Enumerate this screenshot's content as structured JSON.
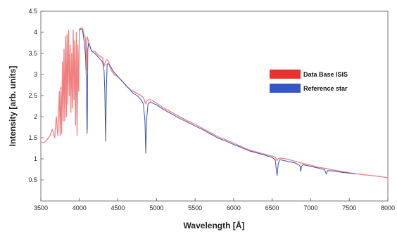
{
  "chart_data": {
    "type": "line",
    "xlabel": "Wavelength [Å]",
    "ylabel": "Intensity  [arb. units]",
    "xlim": [
      3500,
      8000
    ],
    "ylim": [
      0.0,
      4.5
    ],
    "x_ticks": [
      3500,
      4000,
      4500,
      5000,
      5500,
      6000,
      6500,
      7000,
      7500,
      8000
    ],
    "y_ticks": [
      0.5,
      1,
      1.5,
      2,
      2.5,
      3,
      3.5,
      4,
      4.5
    ],
    "x_tick_labels": [
      "3500",
      "4000",
      "4500",
      "5000",
      "5500",
      "6000",
      "6500",
      "7000",
      "7500",
      "8000"
    ],
    "y_tick_labels": [
      "0.5",
      "1",
      "1.5",
      "2",
      "2.5",
      "3",
      "3.5",
      "4",
      "4.5"
    ],
    "grid": false,
    "legend_position": "right",
    "series": [
      {
        "name": "Data Base ISIS",
        "color": "#f08080",
        "x": [
          3500,
          3540,
          3580,
          3620,
          3650,
          3680,
          3700,
          3720,
          3740,
          3750,
          3760,
          3770,
          3780,
          3790,
          3800,
          3810,
          3820,
          3830,
          3840,
          3850,
          3860,
          3870,
          3880,
          3890,
          3900,
          3910,
          3920,
          3930,
          3940,
          3950,
          3960,
          3970,
          3980,
          3990,
          4000,
          4020,
          4040,
          4060,
          4080,
          4090,
          4100,
          4110,
          4130,
          4160,
          4200,
          4250,
          4300,
          4320,
          4340,
          4350,
          4360,
          4380,
          4400,
          4450,
          4500,
          4550,
          4600,
          4650,
          4700,
          4750,
          4800,
          4830,
          4850,
          4861,
          4870,
          4890,
          4920,
          4950,
          5000,
          5100,
          5200,
          5300,
          5400,
          5500,
          5600,
          5700,
          5800,
          5900,
          6000,
          6100,
          6200,
          6300,
          6400,
          6500,
          6540,
          6563,
          6580,
          6600,
          6700,
          6800,
          6900,
          7000,
          7100,
          7200,
          7300,
          7400,
          7500,
          7600,
          7700,
          7800,
          7900,
          8000
        ],
        "y": [
          1.4,
          1.38,
          1.45,
          1.55,
          1.7,
          1.5,
          2.0,
          1.55,
          2.6,
          1.55,
          2.7,
          1.6,
          3.3,
          1.9,
          3.6,
          1.9,
          3.9,
          2.0,
          3.95,
          2.3,
          4.05,
          2.5,
          3.7,
          2.1,
          3.5,
          2.2,
          4.05,
          2.4,
          3.8,
          1.8,
          4.0,
          1.55,
          3.7,
          2.6,
          4.08,
          4.1,
          4.1,
          3.95,
          3.85,
          3.1,
          3.9,
          3.85,
          3.7,
          3.55,
          3.55,
          3.45,
          3.4,
          3.2,
          3.3,
          3.35,
          3.35,
          3.3,
          3.15,
          3.0,
          2.95,
          2.85,
          2.75,
          2.65,
          2.6,
          2.55,
          2.5,
          2.45,
          2.35,
          2.3,
          2.35,
          2.4,
          2.4,
          2.38,
          2.32,
          2.2,
          2.1,
          2.0,
          1.9,
          1.82,
          1.72,
          1.62,
          1.52,
          1.45,
          1.37,
          1.29,
          1.21,
          1.16,
          1.11,
          1.06,
          1.04,
          0.96,
          1.0,
          1.02,
          0.99,
          0.94,
          0.89,
          0.85,
          0.8,
          0.77,
          0.73,
          0.7,
          0.67,
          0.64,
          0.62,
          0.6,
          0.58,
          0.55
        ]
      },
      {
        "name": "Reference star",
        "color": "#3a50b0",
        "x": [
          4000,
          4020,
          4040,
          4060,
          4080,
          4090,
          4100,
          4102,
          4110,
          4120,
          4130,
          4160,
          4200,
          4250,
          4300,
          4320,
          4330,
          4340,
          4350,
          4360,
          4380,
          4400,
          4450,
          4500,
          4550,
          4600,
          4650,
          4700,
          4750,
          4800,
          4830,
          4850,
          4861,
          4870,
          4890,
          4920,
          4950,
          5000,
          5100,
          5200,
          5300,
          5400,
          5500,
          5600,
          5700,
          5800,
          5900,
          6000,
          6100,
          6200,
          6300,
          6400,
          6500,
          6540,
          6563,
          6580,
          6600,
          6700,
          6800,
          6860,
          6870,
          6880,
          6900,
          7000,
          7100,
          7180,
          7200,
          7220,
          7300,
          7400,
          7500,
          7580
        ],
        "y": [
          4.05,
          4.08,
          4.05,
          3.8,
          3.45,
          2.9,
          1.6,
          1.75,
          3.6,
          3.75,
          3.7,
          3.55,
          3.5,
          3.4,
          3.3,
          3.1,
          2.6,
          1.42,
          2.6,
          3.25,
          3.25,
          3.2,
          3.05,
          2.95,
          2.85,
          2.75,
          2.65,
          2.55,
          2.5,
          2.4,
          2.3,
          1.9,
          1.13,
          1.9,
          2.3,
          2.35,
          2.32,
          2.28,
          2.16,
          2.06,
          1.96,
          1.87,
          1.78,
          1.69,
          1.59,
          1.49,
          1.42,
          1.34,
          1.27,
          1.19,
          1.14,
          1.09,
          1.03,
          0.98,
          0.6,
          0.9,
          0.98,
          0.94,
          0.9,
          0.84,
          0.7,
          0.82,
          0.86,
          0.82,
          0.78,
          0.74,
          0.64,
          0.72,
          0.71,
          0.68,
          0.66,
          0.65
        ]
      }
    ]
  }
}
